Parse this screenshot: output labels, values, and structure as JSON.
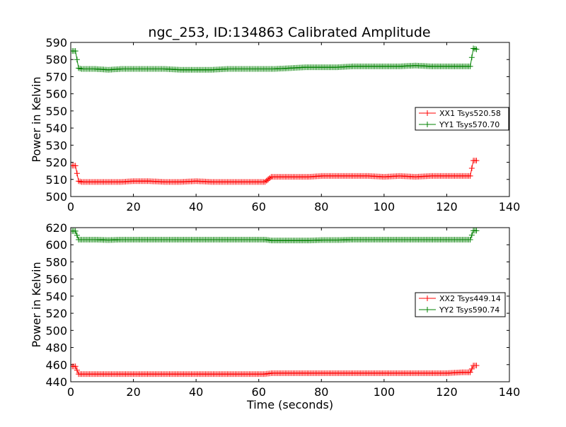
{
  "figure": {
    "title": "ngc_253, ID:134863 Calibrated Amplitude"
  },
  "chart_data": [
    {
      "type": "line",
      "title": "ngc_253, ID:134863 Calibrated Amplitude",
      "xlabel": "",
      "ylabel": "Power in Kelvin",
      "xlim": [
        0,
        140
      ],
      "ylim": [
        500,
        590
      ],
      "xticks": [
        "0",
        "20",
        "40",
        "60",
        "80",
        "100",
        "120",
        "140"
      ],
      "yticks": [
        "500",
        "510",
        "520",
        "530",
        "540",
        "550",
        "560",
        "570",
        "580",
        "590"
      ],
      "legend_position": "right-middle",
      "grid": false,
      "series": [
        {
          "name": "XX1 Tsys520.58",
          "color": "#ff0000",
          "x": [
            0.5,
            1.5,
            2.5,
            3.5,
            5,
            8,
            12,
            16,
            20,
            25,
            30,
            35,
            40,
            45,
            50,
            55,
            60,
            62,
            64,
            68,
            72,
            76,
            80,
            85,
            90,
            95,
            100,
            105,
            110,
            115,
            120,
            125,
            127.5,
            128.5,
            129.5
          ],
          "y": [
            518,
            518,
            509,
            508.5,
            508.5,
            508.5,
            508.5,
            508.5,
            509,
            509,
            508.5,
            508.5,
            509,
            508.5,
            508.5,
            508.5,
            508.5,
            508.5,
            511.5,
            511.5,
            511.5,
            511.5,
            512,
            512,
            512,
            512,
            511.5,
            512,
            511.5,
            512,
            512,
            512,
            512,
            521,
            521
          ]
        },
        {
          "name": "YY1 Tsys570.70",
          "color": "#008000",
          "x": [
            0.5,
            1.5,
            2.5,
            3.5,
            5,
            8,
            12,
            16,
            20,
            25,
            30,
            35,
            40,
            45,
            50,
            55,
            60,
            65,
            70,
            75,
            80,
            85,
            90,
            95,
            100,
            105,
            110,
            115,
            120,
            125,
            127.5,
            128.5,
            129.5
          ],
          "y": [
            585,
            585,
            575,
            574.5,
            574.5,
            574.5,
            574,
            574.5,
            574.5,
            574.5,
            574.5,
            574,
            574,
            574,
            574.5,
            574.5,
            574.5,
            574.5,
            575,
            575.5,
            575.5,
            575.5,
            576,
            576,
            576,
            576,
            576.5,
            576,
            576,
            576,
            576,
            586.5,
            586
          ]
        }
      ]
    },
    {
      "type": "line",
      "title": "",
      "xlabel": "Time (seconds)",
      "ylabel": "Power in Kelvin",
      "xlim": [
        0,
        140
      ],
      "ylim": [
        440,
        620
      ],
      "xticks": [
        "0",
        "20",
        "40",
        "60",
        "80",
        "100",
        "120",
        "140"
      ],
      "yticks": [
        "440",
        "460",
        "480",
        "500",
        "520",
        "540",
        "560",
        "580",
        "600",
        "620"
      ],
      "legend_position": "right-middle",
      "grid": false,
      "series": [
        {
          "name": "XX2 Tsys449.14",
          "color": "#ff0000",
          "x": [
            0.5,
            1.5,
            2.5,
            3.5,
            5,
            8,
            12,
            16,
            20,
            25,
            30,
            35,
            40,
            45,
            50,
            55,
            60,
            62,
            64,
            68,
            72,
            76,
            80,
            85,
            90,
            95,
            100,
            105,
            110,
            115,
            120,
            125,
            127.5,
            128.5,
            129.5
          ],
          "y": [
            458,
            458,
            449,
            449,
            449,
            449,
            449,
            449,
            449,
            449,
            449,
            449,
            449,
            449,
            449,
            449,
            449,
            449,
            450,
            450,
            450,
            450,
            450,
            450,
            450,
            450,
            450,
            450,
            450,
            450,
            450,
            451,
            451,
            459,
            459
          ]
        },
        {
          "name": "YY2 Tsys590.74",
          "color": "#008000",
          "x": [
            0.5,
            1.5,
            2.5,
            3.5,
            5,
            8,
            12,
            16,
            20,
            25,
            30,
            35,
            40,
            45,
            50,
            55,
            60,
            62,
            64,
            68,
            72,
            76,
            80,
            85,
            90,
            95,
            100,
            105,
            110,
            115,
            120,
            125,
            127.5,
            128.5,
            129.5
          ],
          "y": [
            616,
            616,
            606,
            606,
            606,
            606,
            605.5,
            606,
            606,
            606,
            606,
            606,
            606,
            606,
            606,
            606,
            606,
            606,
            605,
            605,
            605,
            605,
            605.5,
            605.5,
            606,
            606,
            606,
            606,
            606,
            606,
            606,
            606,
            606,
            616.5,
            616.5
          ]
        }
      ]
    }
  ]
}
